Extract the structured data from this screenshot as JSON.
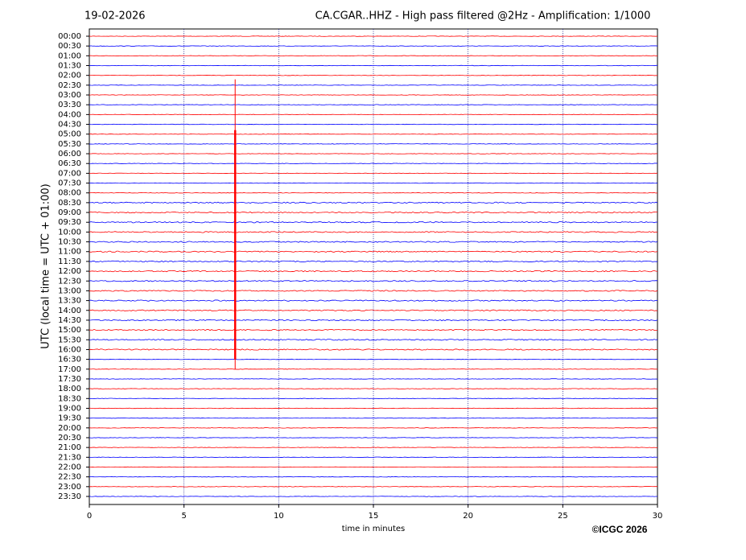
{
  "chart_data": {
    "type": "helicorder",
    "date": "19-02-2026",
    "title": "CA.CGAR..HHZ - High pass filtered @2Hz - Amplification: 1/1000",
    "ylabel": "UTC (local time = UTC + 01:00)",
    "xlabel": "time in minutes",
    "copyright": "©ICGC 2026",
    "categories": [
      "00:00",
      "00:30",
      "01:00",
      "01:30",
      "02:00",
      "02:30",
      "03:00",
      "03:30",
      "04:00",
      "04:30",
      "05:00",
      "05:30",
      "06:00",
      "06:30",
      "07:00",
      "07:30",
      "08:00",
      "08:30",
      "09:00",
      "09:30",
      "10:00",
      "10:30",
      "11:00",
      "11:30",
      "12:00",
      "12:30",
      "13:00",
      "13:30",
      "14:00",
      "14:30",
      "15:00",
      "15:30",
      "16:00",
      "16:30",
      "17:00",
      "17:30",
      "18:00",
      "18:30",
      "19:00",
      "19:30",
      "20:00",
      "20:30",
      "21:00",
      "21:30",
      "22:00",
      "22:30",
      "23:00",
      "23:30"
    ],
    "colors": [
      "#ff0000",
      "#0000ff"
    ],
    "xlim": [
      0,
      30
    ],
    "xticks": [
      0,
      5,
      10,
      15,
      20,
      25,
      30
    ],
    "event_x": 7.7,
    "grid": true
  }
}
